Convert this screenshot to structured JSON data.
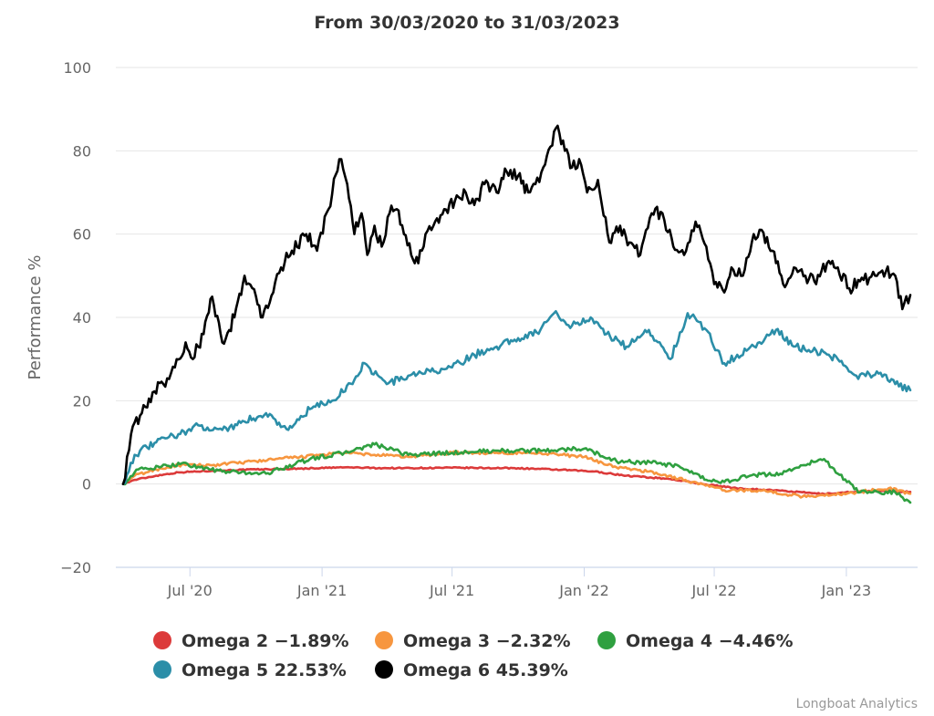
{
  "chart_data": {
    "type": "line",
    "title": "From 30/03/2020 to 31/03/2023",
    "xlabel": "",
    "ylabel": "Performance %",
    "x_range": [
      "2020-03-30",
      "2023-03-31"
    ],
    "ylim": [
      -20,
      100
    ],
    "y_ticks": [
      "100",
      "80",
      "60",
      "40",
      "20",
      "0",
      "−20"
    ],
    "y_tick_values": [
      100,
      80,
      60,
      40,
      20,
      0,
      -20
    ],
    "x_ticks": [
      "Jul '20",
      "Jan '21",
      "Jul '21",
      "Jan '22",
      "Jul '22",
      "Jan '23"
    ],
    "x_tick_dates": [
      "2020-07-01",
      "2021-01-01",
      "2021-07-01",
      "2022-01-01",
      "2022-07-01",
      "2023-01-01"
    ],
    "grid": true,
    "legend_position": "bottom",
    "series": [
      {
        "name": "Omega 2",
        "label": "Omega 2 −1.89%",
        "color": "#dc3a3a",
        "x": [
          "2020-03-30",
          "2020-04-15",
          "2020-05-15",
          "2020-06-15",
          "2020-08-01",
          "2020-10-01",
          "2020-12-01",
          "2021-02-01",
          "2021-04-01",
          "2021-07-01",
          "2021-10-01",
          "2021-12-01",
          "2022-01-15",
          "2022-03-01",
          "2022-05-01",
          "2022-06-15",
          "2022-08-01",
          "2022-10-01",
          "2022-12-01",
          "2023-01-15",
          "2023-03-01",
          "2023-03-31"
        ],
        "values": [
          0,
          1.0,
          2.0,
          2.8,
          3.2,
          3.5,
          3.7,
          4.0,
          3.8,
          3.9,
          3.8,
          3.4,
          3.0,
          2.0,
          1.2,
          0.0,
          -1.0,
          -1.6,
          -2.4,
          -1.8,
          -1.7,
          -1.89
        ]
      },
      {
        "name": "Omega 3",
        "label": "Omega 3 −2.32%",
        "color": "#f7963f",
        "x": [
          "2020-03-30",
          "2020-04-15",
          "2020-05-15",
          "2020-06-15",
          "2020-08-01",
          "2020-10-01",
          "2020-12-01",
          "2021-02-01",
          "2021-03-15",
          "2021-05-01",
          "2021-07-01",
          "2021-09-01",
          "2021-11-01",
          "2022-01-01",
          "2022-02-15",
          "2022-04-01",
          "2022-06-01",
          "2022-07-15",
          "2022-09-01",
          "2022-11-01",
          "2022-12-15",
          "2023-01-15",
          "2023-03-01",
          "2023-03-31"
        ],
        "values": [
          0,
          2.0,
          3.5,
          4.5,
          4.5,
          5.5,
          6.5,
          7.5,
          7.0,
          6.5,
          7.5,
          7.5,
          7.5,
          6.5,
          4.0,
          3.0,
          0.5,
          -1.5,
          -1.5,
          -3.0,
          -2.5,
          -2.0,
          -1.0,
          -2.32
        ]
      },
      {
        "name": "Omega 4",
        "label": "Omega 4 −4.46%",
        "color": "#2fa040",
        "x": [
          "2020-03-30",
          "2020-04-20",
          "2020-05-20",
          "2020-06-20",
          "2020-07-15",
          "2020-08-15",
          "2020-10-15",
          "2020-12-15",
          "2021-02-01",
          "2021-03-15",
          "2021-05-01",
          "2021-07-01",
          "2021-09-01",
          "2021-11-01",
          "2022-01-01",
          "2022-02-15",
          "2022-04-15",
          "2022-05-15",
          "2022-06-20",
          "2022-07-15",
          "2022-08-20",
          "2022-10-01",
          "2022-11-01",
          "2022-12-01",
          "2022-12-20",
          "2023-01-20",
          "2023-03-10",
          "2023-03-31"
        ],
        "values": [
          0,
          3.5,
          4.0,
          5.0,
          4.0,
          3.0,
          2.5,
          6.0,
          7.5,
          9.5,
          7.0,
          7.5,
          8.0,
          8.0,
          8.5,
          5.5,
          5.0,
          4.0,
          1.0,
          0.5,
          2.0,
          2.5,
          4.5,
          6.0,
          2.5,
          -2.0,
          -2.0,
          -4.46
        ]
      },
      {
        "name": "Omega 5",
        "label": "Omega 5 22.53%",
        "color": "#2b8ea8",
        "x": [
          "2020-03-30",
          "2020-04-15",
          "2020-05-15",
          "2020-06-15",
          "2020-07-15",
          "2020-08-15",
          "2020-09-15",
          "2020-10-15",
          "2020-11-15",
          "2020-12-15",
          "2021-01-15",
          "2021-02-15",
          "2021-03-01",
          "2021-04-01",
          "2021-05-01",
          "2021-06-01",
          "2021-07-01",
          "2021-08-01",
          "2021-09-01",
          "2021-10-01",
          "2021-11-01",
          "2021-11-20",
          "2021-12-15",
          "2022-01-10",
          "2022-02-01",
          "2022-03-01",
          "2022-04-01",
          "2022-05-01",
          "2022-05-25",
          "2022-06-20",
          "2022-07-15",
          "2022-08-15",
          "2022-09-10",
          "2022-09-25",
          "2022-10-20",
          "2022-11-20",
          "2022-12-20",
          "2023-01-15",
          "2023-02-15",
          "2023-03-10",
          "2023-03-31"
        ],
        "values": [
          0,
          7.0,
          10.0,
          12.0,
          14.0,
          13.0,
          15.0,
          17.0,
          13.0,
          18.0,
          20.0,
          25.0,
          29.0,
          24.0,
          26.0,
          27.0,
          28.0,
          31.0,
          33.0,
          35.0,
          37.0,
          41.0,
          38.0,
          40.0,
          36.0,
          33.0,
          37.0,
          30.0,
          41.0,
          37.0,
          29.0,
          32.0,
          35.0,
          37.0,
          33.0,
          32.0,
          30.0,
          26.0,
          26.5,
          24.0,
          22.53
        ]
      },
      {
        "name": "Omega 6",
        "label": "Omega 6 45.39%",
        "color": "#000000",
        "x": [
          "2020-03-30",
          "2020-04-10",
          "2020-04-25",
          "2020-05-10",
          "2020-05-25",
          "2020-06-10",
          "2020-06-25",
          "2020-07-05",
          "2020-07-20",
          "2020-08-01",
          "2020-08-15",
          "2020-09-01",
          "2020-09-15",
          "2020-10-01",
          "2020-10-10",
          "2020-10-25",
          "2020-11-05",
          "2020-11-20",
          "2020-12-10",
          "2020-12-25",
          "2021-01-10",
          "2021-01-25",
          "2021-02-05",
          "2021-02-15",
          "2021-02-25",
          "2021-03-05",
          "2021-03-15",
          "2021-03-25",
          "2021-04-05",
          "2021-04-15",
          "2021-04-25",
          "2021-05-05",
          "2021-05-15",
          "2021-05-25",
          "2021-06-05",
          "2021-06-20",
          "2021-07-05",
          "2021-07-20",
          "2021-08-01",
          "2021-08-15",
          "2021-09-01",
          "2021-09-15",
          "2021-10-01",
          "2021-10-15",
          "2021-10-25",
          "2021-11-05",
          "2021-11-15",
          "2021-11-25",
          "2021-12-05",
          "2021-12-15",
          "2021-12-25",
          "2022-01-05",
          "2022-01-20",
          "2022-02-05",
          "2022-02-20",
          "2022-03-05",
          "2022-03-20",
          "2022-04-05",
          "2022-04-20",
          "2022-05-05",
          "2022-05-20",
          "2022-06-05",
          "2022-06-20",
          "2022-07-01",
          "2022-07-15",
          "2022-07-25",
          "2022-08-10",
          "2022-08-25",
          "2022-09-05",
          "2022-09-20",
          "2022-10-05",
          "2022-10-20",
          "2022-11-05",
          "2022-11-20",
          "2022-12-05",
          "2022-12-20",
          "2023-01-05",
          "2023-01-25",
          "2023-02-10",
          "2023-02-25",
          "2023-03-10",
          "2023-03-20",
          "2023-03-31"
        ],
        "values": [
          0,
          12.0,
          17.0,
          22.0,
          24.0,
          28.0,
          34.0,
          30.0,
          36.0,
          45.0,
          34.0,
          40.0,
          50.0,
          45.0,
          40.0,
          46.0,
          52.0,
          56.0,
          60.0,
          56.0,
          66.0,
          78.0,
          72.0,
          60.0,
          65.0,
          55.0,
          62.0,
          57.0,
          65.0,
          66.0,
          60.0,
          55.0,
          53.0,
          60.0,
          62.0,
          66.0,
          68.0,
          70.0,
          67.0,
          72.0,
          70.0,
          75.0,
          74.0,
          70.0,
          72.0,
          76.0,
          81.0,
          86.0,
          80.0,
          76.0,
          78.0,
          70.0,
          73.0,
          58.0,
          62.0,
          58.0,
          55.0,
          65.0,
          65.0,
          57.0,
          55.0,
          63.0,
          57.0,
          48.0,
          46.0,
          52.0,
          50.0,
          60.0,
          61.0,
          56.0,
          48.0,
          52.0,
          50.0,
          48.0,
          53.0,
          52.0,
          47.0,
          49.0,
          50.0,
          51.0,
          50.0,
          42.0,
          45.39
        ]
      }
    ],
    "credits": "Longboat Analytics"
  }
}
